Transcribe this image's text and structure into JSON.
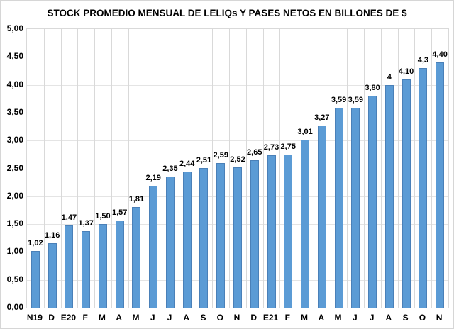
{
  "chart_data": {
    "type": "bar",
    "title": "STOCK PROMEDIO MENSUAL DE LELIQs Y PASES NETOS EN BILLONES DE $",
    "categories": [
      "N19",
      "D",
      "E20",
      "F",
      "M",
      "A",
      "M",
      "J",
      "J",
      "A",
      "S",
      "O",
      "N",
      "D",
      "E21",
      "F",
      "M",
      "A",
      "M",
      "J",
      "J",
      "A",
      "S",
      "O",
      "N"
    ],
    "values": [
      1.02,
      1.16,
      1.47,
      1.37,
      1.5,
      1.57,
      1.81,
      2.19,
      2.35,
      2.44,
      2.51,
      2.59,
      2.52,
      2.65,
      2.73,
      2.75,
      3.01,
      3.27,
      3.59,
      3.59,
      3.8,
      4.0,
      4.1,
      4.3,
      4.4
    ],
    "value_labels": [
      "1,02",
      "1,16",
      "1,47",
      "1,37",
      "1,50",
      "1,57",
      "1,81",
      "2,19",
      "2,35",
      "2,44",
      "2,51",
      "2,59",
      "2,52",
      "2,65",
      "2,73",
      "2,75",
      "3,01",
      "3,27",
      "3,59",
      "3,59",
      "3,80",
      "4",
      "4,10",
      "4,3",
      "4,40"
    ],
    "xlabel": "",
    "ylabel": "",
    "ylim": [
      0,
      5
    ],
    "y_tick_step": 0.5,
    "y_tick_labels": [
      "0,00",
      "0,50",
      "1,00",
      "1,50",
      "2,00",
      "2,50",
      "3,00",
      "3,50",
      "4,00",
      "4,50",
      "5,00"
    ],
    "grid": true,
    "legend": false,
    "bar_color": "#5b9bd5",
    "bar_border_color": "#4a80b8",
    "gridline_h_color": "#e4e4e4",
    "gridline_v_color": "#d9d9d9"
  }
}
